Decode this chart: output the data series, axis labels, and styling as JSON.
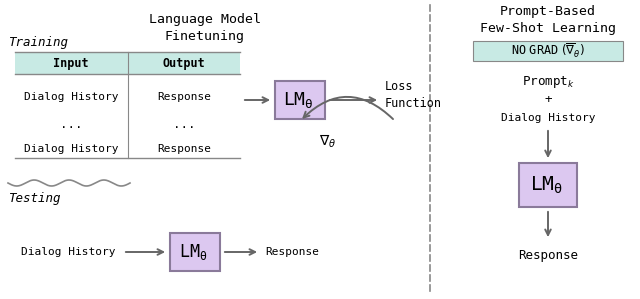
{
  "fig_width": 6.4,
  "fig_height": 2.99,
  "dpi": 100,
  "bg_color": "#ffffff",
  "lm_box_color": "#dcc8f0",
  "lm_box_edge_color": "#8a7a9a",
  "table_header_bg": "#c8eae4",
  "table_border_color": "#888888",
  "dashed_line_color": "#888888",
  "arrow_color": "#666666",
  "text_color": "#000000",
  "no_grad_bg": "#c8eae4",
  "no_grad_border": "#888888",
  "title_left": "Language Model\nFinetuning",
  "title_right": "Prompt-Based\nFew-Shot Learning",
  "training_label": "Training",
  "testing_label": "Testing",
  "table_headers": [
    "Input",
    "Output"
  ],
  "table_row1_left": "Dialog History",
  "table_row1_right": "Response",
  "table_row2": "...",
  "table_row3_left": "Dialog History",
  "table_row3_right": "Response",
  "lm_label": "LM",
  "theta": "θ",
  "loss_label": "Loss\nFunction",
  "grad_label": "∇θ",
  "prompt_k": "Prompt",
  "plus_text": "+",
  "dialog_history": "Dialog History",
  "response_text": "Response"
}
